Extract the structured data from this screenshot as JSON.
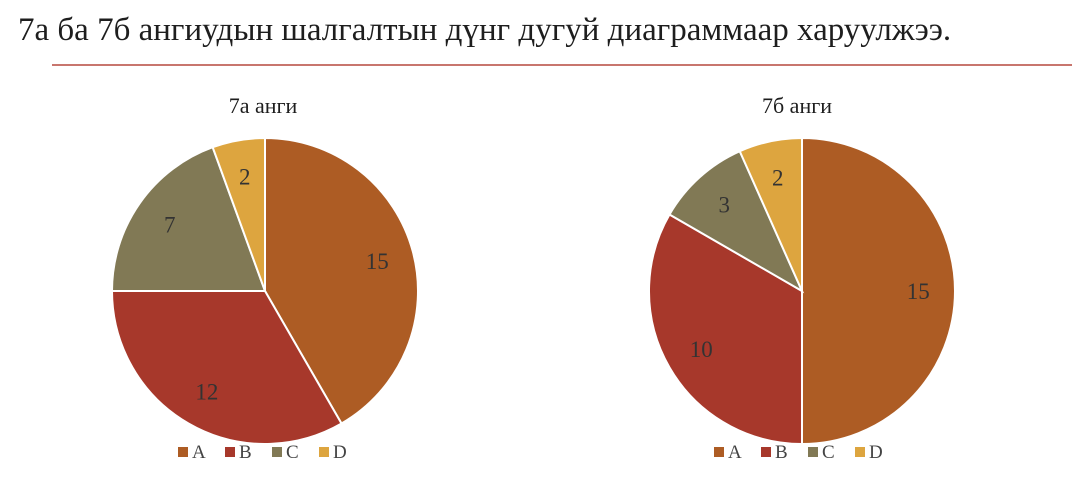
{
  "page": {
    "title": "7а ба 7б ангиудын шалгалтын дүнг дугуй диаграммаар харуулжээ."
  },
  "colors": {
    "A": "#ad5c24",
    "B": "#a7382b",
    "C": "#817955",
    "D": "#dda53f",
    "rule": "#c8766e"
  },
  "chart_data": [
    {
      "type": "pie",
      "title": "7а анги",
      "categories": [
        "A",
        "B",
        "C",
        "D"
      ],
      "values": [
        15,
        12,
        7,
        2
      ],
      "legend": "bottom"
    },
    {
      "type": "pie",
      "title": "7б анги",
      "categories": [
        "A",
        "B",
        "C",
        "D"
      ],
      "values": [
        15,
        10,
        3,
        2
      ],
      "legend": "bottom"
    }
  ]
}
